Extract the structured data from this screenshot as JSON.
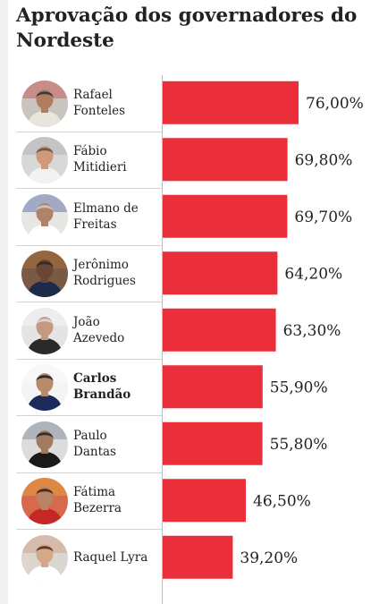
{
  "title_lines": [
    "Aprovação dos governadores do",
    "Nordeste"
  ],
  "colors": {
    "bar": "#ea2f3b",
    "text": "#222222",
    "divider": "#d4d4d4"
  },
  "chart_data": {
    "type": "bar",
    "orientation": "horizontal",
    "title": "Aprovação dos governadores do Nordeste",
    "categories": [
      "Rafael Fonteles",
      "Fábio Mitidieri",
      "Elmano de Freitas",
      "Jerônimo Rodrigues",
      "João Azevedo",
      "Carlos Brandão",
      "Paulo Dantas",
      "Fátima Bezerra",
      "Raquel Lyra"
    ],
    "values": [
      76.0,
      69.8,
      69.7,
      64.2,
      63.3,
      55.9,
      55.8,
      46.5,
      39.2
    ],
    "value_labels": [
      "76,00%",
      "69,80%",
      "69,70%",
      "64,20%",
      "63,30%",
      "55,90%",
      "55,80%",
      "46,50%",
      "39,20%"
    ],
    "unit": "%",
    "xlim": [
      0,
      100
    ],
    "grid": false,
    "legend": "none"
  },
  "rows": [
    {
      "name_lines": [
        "Rafael",
        "Fonteles"
      ],
      "bold": false,
      "avatar": "rafael-fonteles-avatar",
      "tones": [
        "#c9c4bd",
        "#3a3a3a",
        "#b07e5e",
        "#e9e4dc",
        "#c62828"
      ]
    },
    {
      "name_lines": [
        "Fábio",
        "Mitidieri"
      ],
      "bold": false,
      "avatar": "fabio-mitidieri-avatar",
      "tones": [
        "#d8d8d8",
        "#6a5a50",
        "#d09a7a",
        "#f2f2f2",
        "#9aa0a8"
      ]
    },
    {
      "name_lines": [
        "Elmano de",
        "Freitas"
      ],
      "bold": false,
      "avatar": "elmano-de-freitas-avatar",
      "tones": [
        "#e8e6e2",
        "#c8c4bc",
        "#b08268",
        "#ffffff",
        "#1f3a8a"
      ]
    },
    {
      "name_lines": [
        "Jerônimo",
        "Rodrigues"
      ],
      "bold": false,
      "avatar": "jeronimo-rodrigues-avatar",
      "tones": [
        "#7a5a44",
        "#3a2a22",
        "#6a4634",
        "#1e2a4a",
        "#c87a3a"
      ]
    },
    {
      "name_lines": [
        "João",
        "Azevedo"
      ],
      "bold": false,
      "avatar": "joao-azevedo-avatar",
      "tones": [
        "#e4e4e4",
        "#d6d6d6",
        "#c49a7e",
        "#2a2a2a",
        "#ffffff"
      ]
    },
    {
      "name_lines": [
        "Carlos",
        "Brandão"
      ],
      "bold": true,
      "avatar": "carlos-brandao-avatar",
      "tones": [
        "#f4f4f4",
        "#2a2a2a",
        "#b88a6c",
        "#1c2a5a",
        "#ffffff"
      ]
    },
    {
      "name_lines": [
        "Paulo",
        "Dantas"
      ],
      "bold": false,
      "avatar": "paulo-dantas-avatar",
      "tones": [
        "#dcdcdc",
        "#2e2e2e",
        "#a27a62",
        "#1a1a1a",
        "#5a6a7a"
      ]
    },
    {
      "name_lines": [
        "Fátima",
        "Bezerra"
      ],
      "bold": false,
      "avatar": "fatima-bezerra-avatar",
      "tones": [
        "#d66a4a",
        "#4a2a1e",
        "#b88466",
        "#c62828",
        "#f0c040"
      ]
    },
    {
      "name_lines": [
        "Raquel Lyra"
      ],
      "bold": false,
      "avatar": "raquel-lyra-avatar",
      "tones": [
        "#dcd6d0",
        "#5a3a2a",
        "#d6a88a",
        "#ffffff",
        "#c88a6a"
      ]
    }
  ]
}
